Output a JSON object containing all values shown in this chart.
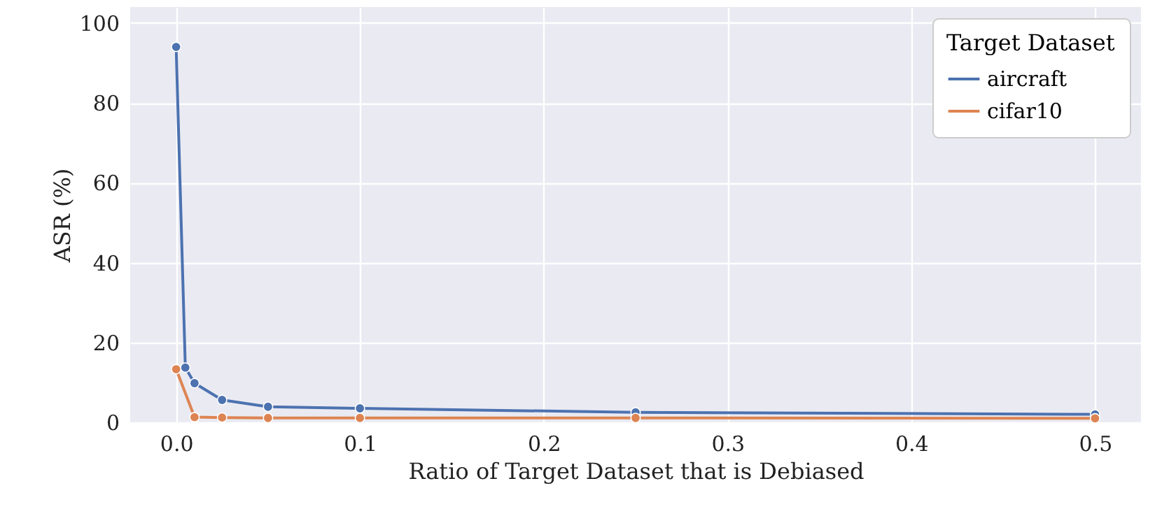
{
  "chart_data": {
    "type": "line",
    "xlabel": "Ratio of Target Dataset that is Debiased",
    "ylabel": "ASR (%)",
    "legend_title": "Target Dataset",
    "series": [
      {
        "name": "aircraft",
        "color": "#4c72b0",
        "x": [
          0,
          0.005,
          0.01,
          0.025,
          0.05,
          0.1,
          0.25,
          0.5
        ],
        "values": [
          94,
          13.7,
          9.8,
          5.6,
          3.9,
          3.5,
          2.5,
          2.0
        ]
      },
      {
        "name": "cifar10",
        "color": "#dd8452",
        "x": [
          0,
          0.01,
          0.025,
          0.05,
          0.1,
          0.25,
          0.5
        ],
        "values": [
          13.3,
          1.3,
          1.2,
          1.1,
          1.1,
          1.1,
          1.0
        ]
      }
    ],
    "xlim": [
      -0.025,
      0.525
    ],
    "xticks": [
      {
        "value": 0,
        "label": "0.0"
      },
      0.1,
      0.2,
      0.3,
      0.4,
      0.5
    ],
    "ylim": [
      0,
      104
    ],
    "yticks": [
      0,
      20,
      40,
      60,
      80,
      100
    ],
    "grid": true,
    "legend": "top right",
    "marker": "circle",
    "line_style": "solid"
  }
}
